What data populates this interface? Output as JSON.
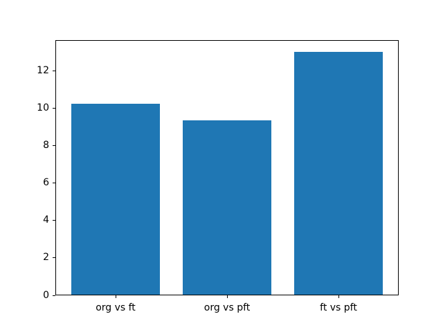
{
  "chart_data": {
    "type": "bar",
    "title": "",
    "xlabel": "",
    "ylabel": "",
    "categories": [
      "org vs ft",
      "org vs pft",
      "ft vs pft"
    ],
    "values": [
      10.22,
      9.35,
      13.0
    ],
    "ylim": [
      0,
      13.65
    ],
    "yticks": [
      0,
      2,
      4,
      6,
      8,
      10,
      12
    ],
    "bar_width_fraction": 0.8,
    "grid": false,
    "legend_position": "none",
    "bar_color": "#1f77b4",
    "axis_color": "#000000",
    "tick_label_color": "#000000",
    "background_color": "#ffffff"
  }
}
